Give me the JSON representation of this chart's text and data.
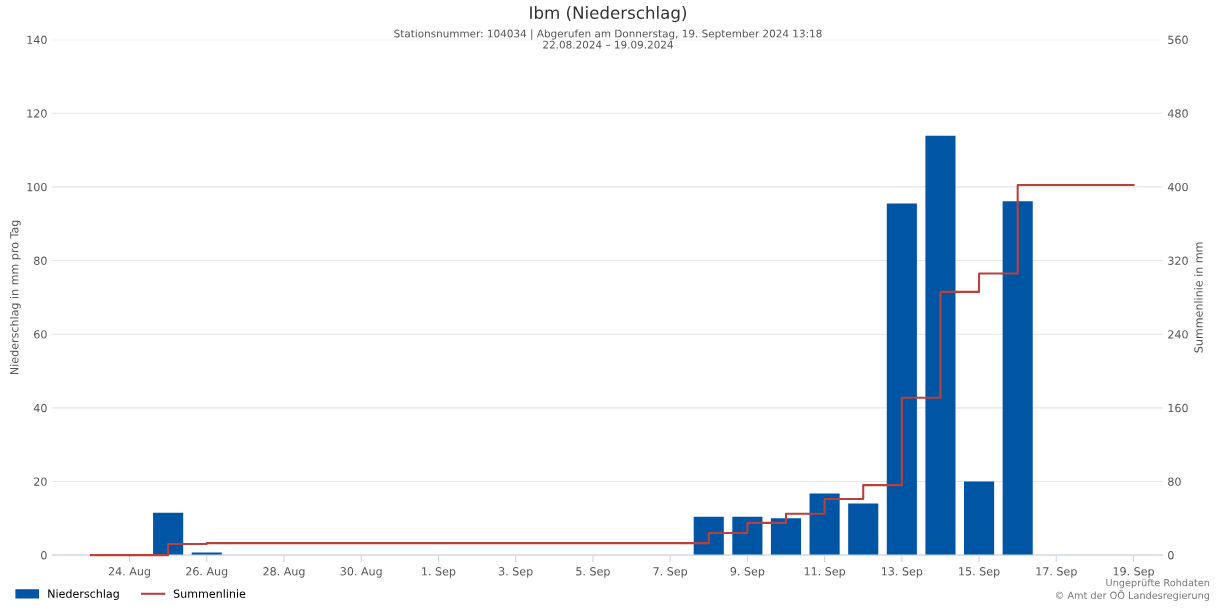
{
  "chart_data": {
    "type": "bar",
    "title": "Ibm (Niederschlag)",
    "subtitle": "Stationsnummer: 104034 | Abgerufen am Donnerstag, 19. September 2024 13:18\n22.08.2024 – 19.09.2024",
    "ylabel": "Niederschlag in mm pro Tag",
    "y2label": "Summenlinie in mm",
    "annotations": [
      "Ungeprüfte Rohdaten\n© Amt der OÖ Landesregierung"
    ],
    "xlim": [
      "2024-08-22",
      "2024-09-19T18:00"
    ],
    "xticks": [
      {
        "value": "2024-08-24",
        "label": "24. Aug"
      },
      {
        "value": "2024-08-26",
        "label": "26. Aug"
      },
      {
        "value": "2024-08-28",
        "label": "28. Aug"
      },
      {
        "value": "2024-08-30",
        "label": "30. Aug"
      },
      {
        "value": "2024-09-01",
        "label": "1. Sep"
      },
      {
        "value": "2024-09-03",
        "label": "3. Sep"
      },
      {
        "value": "2024-09-05",
        "label": "5. Sep"
      },
      {
        "value": "2024-09-07",
        "label": "7. Sep"
      },
      {
        "value": "2024-09-09",
        "label": "9. Sep"
      },
      {
        "value": "2024-09-11",
        "label": "11. Sep"
      },
      {
        "value": "2024-09-13",
        "label": "13. Sep"
      },
      {
        "value": "2024-09-15",
        "label": "15. Sep"
      },
      {
        "value": "2024-09-17",
        "label": "17. Sep"
      },
      {
        "value": "2024-09-19",
        "label": "19. Sep"
      }
    ],
    "ylim": [
      0,
      140
    ],
    "yticks": [
      0,
      20,
      40,
      60,
      80,
      100,
      120,
      140
    ],
    "y2lim": [
      0,
      560
    ],
    "y2ticks": [
      0,
      80,
      160,
      240,
      320,
      400,
      480,
      560
    ],
    "grid": "y",
    "legend": "bottom left",
    "series": [
      {
        "name": "Niederschlag",
        "color": "#0055a5",
        "x": [
          "2024-08-25",
          "2024-08-26",
          "2024-09-08",
          "2024-09-09",
          "2024-09-10",
          "2024-09-11",
          "2024-09-12",
          "2024-09-13",
          "2024-09-14",
          "2024-09-15",
          "2024-09-16"
        ],
        "values": [
          11.5,
          0.7,
          10.4,
          10.4,
          10.0,
          16.7,
          14.0,
          95.5,
          113.9,
          20.0,
          96.1
        ]
      },
      {
        "name": "Summenlinie",
        "type": "step",
        "axis": "y2",
        "color": "#b8413e",
        "x": [
          "2024-08-23",
          "2024-08-24",
          "2024-08-25",
          "2024-08-26",
          "2024-08-27",
          "2024-08-28",
          "2024-08-29",
          "2024-08-30",
          "2024-08-31",
          "2024-09-01",
          "2024-09-02",
          "2024-09-03",
          "2024-09-04",
          "2024-09-05",
          "2024-09-06",
          "2024-09-07",
          "2024-09-08",
          "2024-09-09",
          "2024-09-10",
          "2024-09-11",
          "2024-09-12",
          "2024-09-13",
          "2024-09-14",
          "2024-09-15",
          "2024-09-16",
          "2024-09-17",
          "2024-09-18",
          "2024-09-19"
        ],
        "values": [
          0,
          0,
          12,
          13,
          13,
          13,
          13,
          13,
          13,
          13,
          13,
          13,
          13,
          13,
          13,
          13,
          24,
          35,
          45,
          61,
          76,
          171,
          286,
          306,
          402,
          402,
          402,
          402
        ]
      }
    ]
  }
}
